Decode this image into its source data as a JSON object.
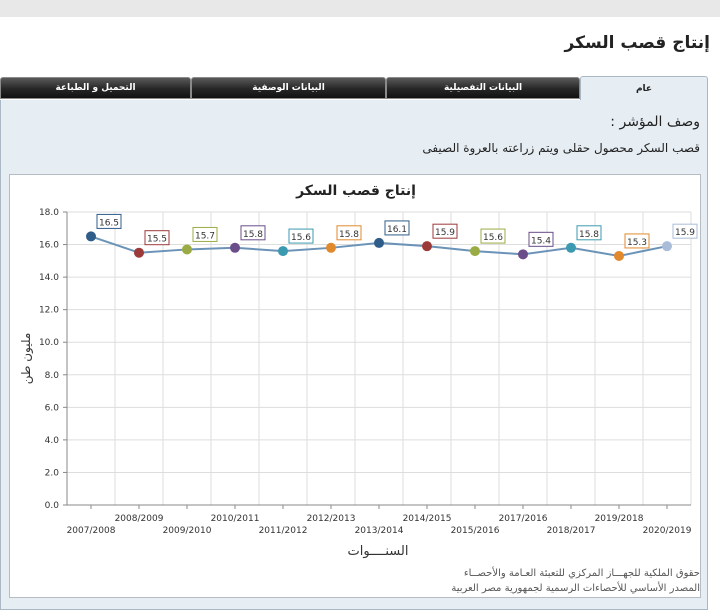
{
  "page": {
    "title": "إنتاج قصب السكر"
  },
  "tabs": [
    {
      "label": "عام"
    },
    {
      "label": "البيانات التفصيلية"
    },
    {
      "label": "البيانات الوصفية"
    },
    {
      "label": "التحميل و الطباعة"
    }
  ],
  "indicator": {
    "heading": "وصف المؤشر :",
    "description": "قصب السكر محصول حقلى ويتم زراعته بالعروة الصيفى"
  },
  "colors": {
    "line": "#6b93b8",
    "grid": "#dddddd",
    "points": [
      "#2f5d8a",
      "#9c3a3a",
      "#9bab44",
      "#6b4d8a",
      "#3b9ab0",
      "#e08a2d",
      "#2f5d8a",
      "#9c3a3a",
      "#9bab44",
      "#6b4d8a",
      "#3b9ab0",
      "#e08a2d",
      "#a9bcd8"
    ]
  },
  "chart_data": {
    "type": "line",
    "title": "إنتاج قصب السكر",
    "xlabel": "السنــــوات",
    "ylabel": "مليون طن",
    "ylim": [
      0,
      18
    ],
    "yticks": [
      "0.0",
      "2.0",
      "4.0",
      "6.0",
      "8.0",
      "10.0",
      "12.0",
      "14.0",
      "16.0",
      "18.0"
    ],
    "grid": true,
    "categories": [
      "2007/2008",
      "2008/2009",
      "2009/2010",
      "2010/2011",
      "2011/2012",
      "2012/2013",
      "2013/2014",
      "2014/2015",
      "2015/2016",
      "2016/2017",
      "2017/2018",
      "2018/2019",
      "2019/2020"
    ],
    "tick_labels": [
      "2007/2008",
      "2008/2009",
      "2009/2010",
      "2010/2011",
      "2011/2012",
      "2012/2013",
      "2013/2014",
      "2014/2015",
      "2015/2016",
      "2017/2016",
      "2018/2017",
      "2019/2018",
      "2020/2019"
    ],
    "values": [
      16.5,
      15.5,
      15.7,
      15.8,
      15.6,
      15.8,
      16.1,
      15.9,
      15.6,
      15.4,
      15.8,
      15.3,
      15.9
    ],
    "data_labels": [
      "16.5",
      "15.5",
      "15.7",
      "15.8",
      "15.6",
      "15.8",
      "16.1",
      "15.9",
      "15.6",
      "15.4",
      "15.8",
      "15.3",
      "15.9"
    ]
  },
  "footer": {
    "line1": "حقوق الملكية للجهـــاز المركزي للتعبئة العـامة والأحصــاء",
    "line2": "المصدر الأساسي للأحصاءات الرسمية لجمهورية مصر العربية"
  }
}
